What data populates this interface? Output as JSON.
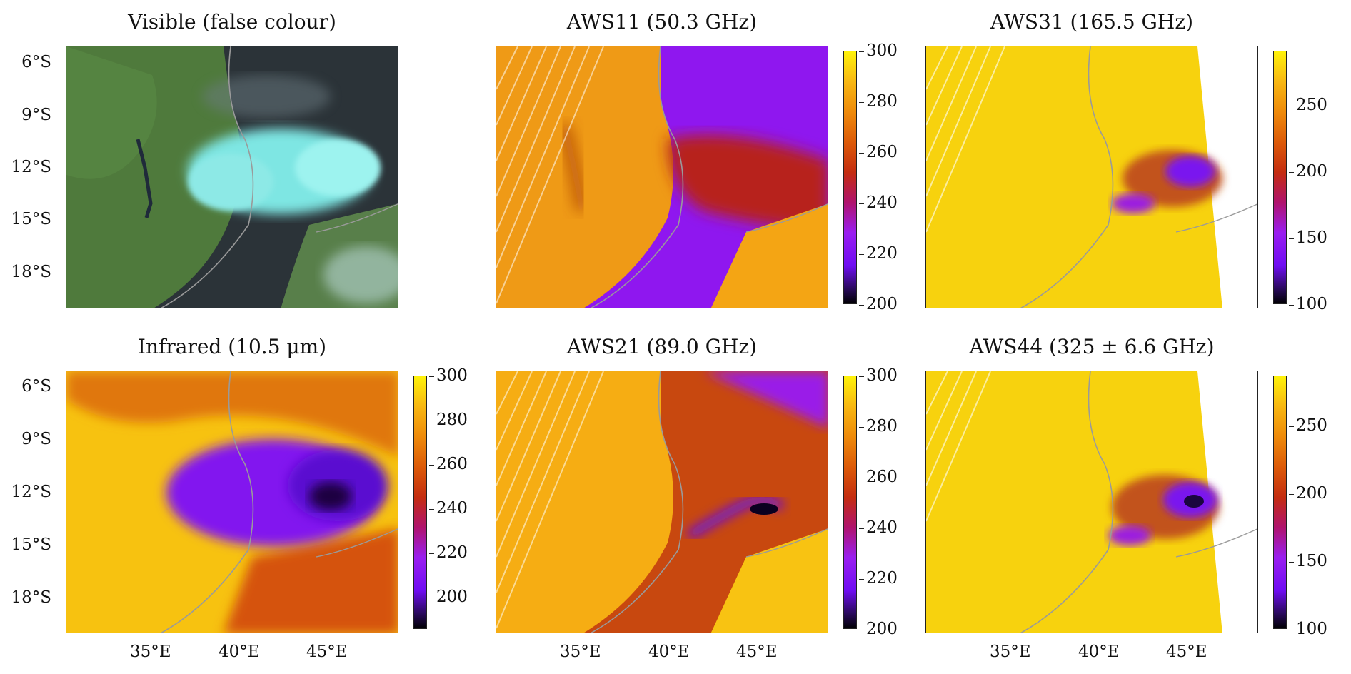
{
  "panels": {
    "visible": {
      "title": "Visible (false colour)"
    },
    "aws11": {
      "title": "AWS11 (50.3 GHz)",
      "colorbar_ticks": [
        "300",
        "280",
        "260",
        "240",
        "220",
        "200"
      ]
    },
    "aws31": {
      "title": "AWS31 (165.5 GHz)",
      "colorbar_ticks": [
        "250",
        "200",
        "150",
        "100"
      ]
    },
    "infrared": {
      "title": "Infrared (10.5 μm)",
      "colorbar_ticks": [
        "300",
        "280",
        "260",
        "240",
        "220",
        "200"
      ]
    },
    "aws21": {
      "title": "AWS21 (89.0 GHz)",
      "colorbar_ticks": [
        "300",
        "280",
        "260",
        "240",
        "220",
        "200"
      ]
    },
    "aws44": {
      "title": "AWS44 (325 ± 6.6 GHz)",
      "colorbar_ticks": [
        "250",
        "200",
        "150",
        "100"
      ]
    }
  },
  "latitude_labels": [
    "6°S",
    "9°S",
    "12°S",
    "15°S",
    "18°S"
  ],
  "longitude_labels": [
    "35°E",
    "40°E",
    "45°E"
  ],
  "colors": {
    "coastline": "#9a9a9a",
    "frame": "#222222"
  }
}
